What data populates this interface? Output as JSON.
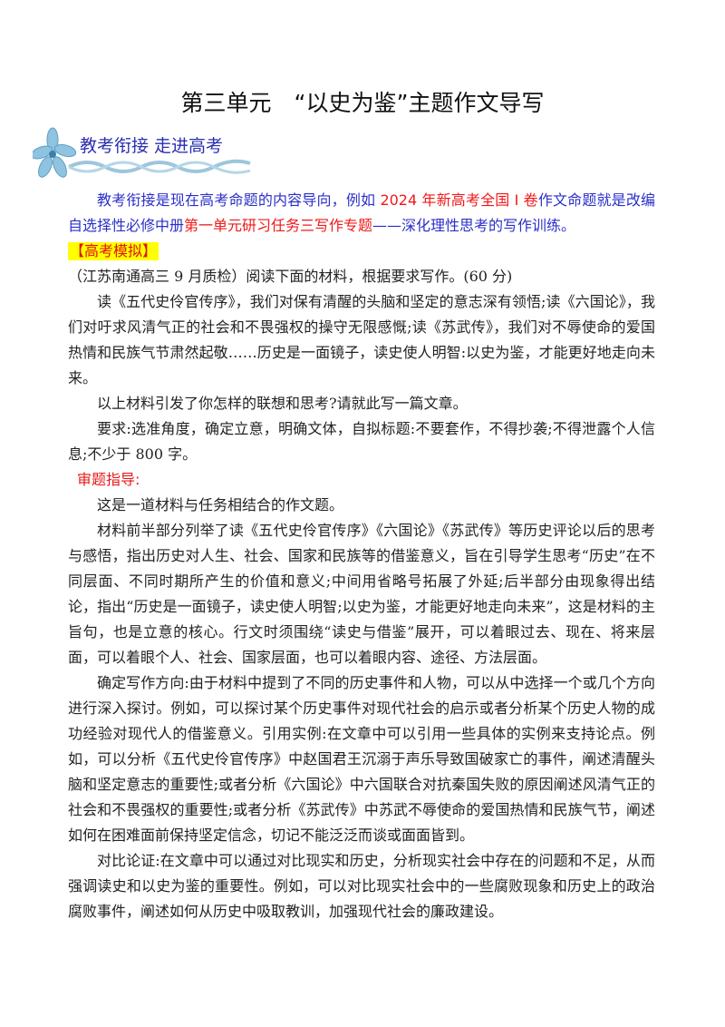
{
  "title": "第三单元　“以史为鉴”主题作文导写",
  "section": {
    "label": "教考衔接 走进高考",
    "icon": "flower-ribbon-icon"
  },
  "intro": {
    "p1": "教考衔接是现在高考命题的内容导向，例如 ",
    "r1": "2024 年新高考全国 I 卷",
    "p2": "作文命题就是改编自选择性必修中册",
    "r2": "第一单元研习任务三写作专题",
    "p3": "——深化理性思考的写作训练。"
  },
  "tag": "【高考模拟】",
  "prompt": {
    "source": "（江苏南通高三 9 月质检）阅读下面的材料，根据要求写作。(60 分)",
    "material": "读《五代史伶官传序》，我们对保有清醒的头脑和坚定的意志深有领悟;读《六国论》，我们对吁求风清气正的社会和不畏强权的操守无限感慨;读《苏武传》，我们对不辱使命的爱国热情和民族气节肃然起敬……历史是一面镜子，读史使人明智:以史为鉴，才能更好地走向未来。",
    "task": "以上材料引发了你怎样的联想和思考?请就此写一篇文章。",
    "requirements": "要求:选准角度，确定立意，明确文体，自拟标题:不要套作，不得抄袭;不得泄露个人信息;不少于 800 字。"
  },
  "guide": {
    "heading": "审题指导:",
    "paragraphs": [
      "这是一道材料与任务相结合的作文题。",
      "材料前半部分列举了读《五代史伶官传序》《六国论》《苏武传》等历史评论以后的思考与感悟，指出历史对人生、社会、国家和民族等的借鉴意义，旨在引导学生思考“历史”在不同层面、不同时期所产生的价值和意义;中间用省略号拓展了外延;后半部分由现象得出结论，指出“历史是一面镜子，读史使人明智;以史为鉴，才能更好地走向未来”，这是材料的主旨句，也是立意的核心。行文时须围绕“读史与借鉴”展开，可以着眼过去、现在、将来层面，可以着眼个人、社会、国家层面，也可以着眼内容、途径、方法层面。",
      "确定写作方向:由于材料中提到了不同的历史事件和人物，可以从中选择一个或几个方向进行深入探讨。例如，可以探讨某个历史事件对现代社会的启示或者分析某个历史人物的成功经验对现代人的借鉴意义。引用实例:在文章中可以引用一些具体的实例来支持论点。例如，可以分析《五代史伶官传序》中赵国君王沉溺于声乐导致国破家亡的事件，阐述清醒头脑和坚定意志的重要性;或者分析《六国论》中六国联合对抗秦国失败的原因阐述风清气正的社会和不畏强权的重要性;或者分析《苏武传》中苏武不辱使命的爱国热情和民族气节，阐述如何在困难面前保持坚定信念，切记不能泛泛而谈或面面皆到。",
      "对比论证:在文章中可以通过对比现实和历史，分析现实社会中存在的问题和不足，从而强调读史和以史为鉴的重要性。例如，可以对比现实社会中的一些腐败现象和历史上的政治腐败事件，阐述如何从历史中吸取教训，加强现代社会的廉政建设。"
    ]
  },
  "colors": {
    "blue": "#2b30c8",
    "red": "#f01818",
    "highlight": "#ffff00"
  }
}
